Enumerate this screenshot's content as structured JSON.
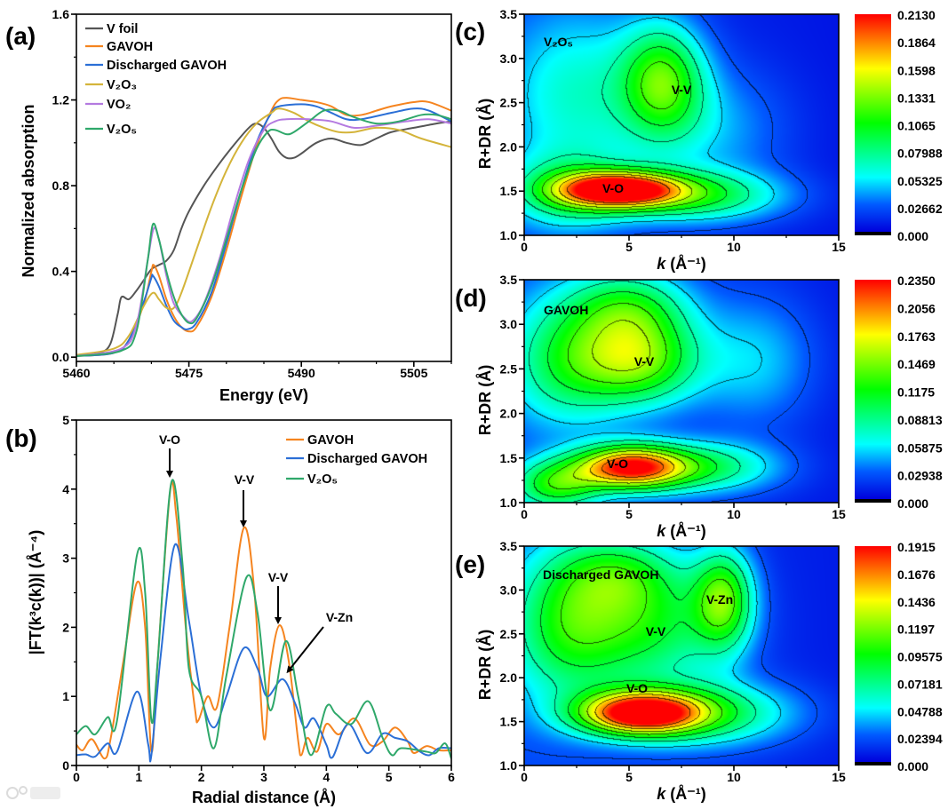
{
  "colors": {
    "v_foil": "#555555",
    "gavoh": "#f5841f",
    "discharged": "#2b6fd6",
    "v2o3": "#d4b43a",
    "vo2": "#b47ae0",
    "v2o5": "#2fa86a"
  },
  "watermark": "大数跨境",
  "chart_data": [
    {
      "panel": "(a)",
      "type": "line",
      "xlabel": "Energy (eV)",
      "ylabel": "Normalized absorption",
      "xlim": [
        5460,
        5510
      ],
      "ylim": [
        -0.02,
        1.6
      ],
      "xticks": [
        5460,
        5475,
        5490,
        5505
      ],
      "xtick_labels": [
        "5460",
        "5475",
        "5490",
        "5505"
      ],
      "yticks": [
        0,
        0.4,
        0.8,
        1.2,
        1.6
      ],
      "ytick_labels": [
        "0.0",
        "0.4",
        "0.8",
        "1.2",
        "1.6"
      ],
      "legend_position": "top-left",
      "series": [
        {
          "name": "V foil",
          "color": "#555555",
          "x": [
            5460,
            5463,
            5464.5,
            5465.5,
            5466,
            5467,
            5468,
            5469,
            5470,
            5471,
            5472,
            5473,
            5474,
            5475,
            5477,
            5479,
            5481,
            5483,
            5484,
            5485,
            5486,
            5487,
            5488,
            5489,
            5490,
            5492,
            5494,
            5496,
            5498,
            5500,
            5502,
            5505,
            5508,
            5510
          ],
          "y": [
            0.01,
            0.02,
            0.06,
            0.2,
            0.28,
            0.27,
            0.31,
            0.36,
            0.41,
            0.43,
            0.45,
            0.5,
            0.6,
            0.68,
            0.8,
            0.9,
            0.99,
            1.07,
            1.09,
            1.07,
            1.02,
            0.96,
            0.93,
            0.93,
            0.95,
            1.0,
            1.02,
            1.0,
            0.99,
            1.02,
            1.05,
            1.07,
            1.09,
            1.1
          ]
        },
        {
          "name": "GAVOH",
          "color": "#f5841f",
          "x": [
            5460,
            5465,
            5467,
            5469,
            5470,
            5470.3,
            5471,
            5472,
            5473,
            5474,
            5475,
            5476,
            5478,
            5480,
            5482,
            5484,
            5486,
            5487,
            5488,
            5490,
            5492,
            5494,
            5496,
            5498,
            5500,
            5502,
            5505,
            5507,
            5510
          ],
          "y": [
            0.005,
            0.02,
            0.08,
            0.25,
            0.4,
            0.43,
            0.38,
            0.27,
            0.19,
            0.14,
            0.12,
            0.14,
            0.28,
            0.5,
            0.75,
            0.98,
            1.15,
            1.2,
            1.21,
            1.2,
            1.19,
            1.17,
            1.13,
            1.13,
            1.15,
            1.17,
            1.19,
            1.19,
            1.15
          ]
        },
        {
          "name": "Discharged GAVOH",
          "color": "#2b6fd6",
          "x": [
            5460,
            5465,
            5467,
            5469,
            5470,
            5470.2,
            5471,
            5472,
            5473,
            5474,
            5474.8,
            5476,
            5478,
            5480,
            5482,
            5484,
            5486,
            5487,
            5490,
            5492,
            5494,
            5496,
            5498,
            5502,
            5505,
            5507,
            5510
          ],
          "y": [
            0.005,
            0.02,
            0.08,
            0.26,
            0.37,
            0.38,
            0.33,
            0.24,
            0.17,
            0.14,
            0.13,
            0.16,
            0.3,
            0.53,
            0.78,
            1.0,
            1.14,
            1.17,
            1.18,
            1.17,
            1.14,
            1.11,
            1.11,
            1.14,
            1.16,
            1.15,
            1.1
          ]
        },
        {
          "name": "V₂O₃",
          "color": "#d4b43a",
          "x": [
            5460,
            5465,
            5467,
            5469,
            5470.2,
            5471,
            5472,
            5473,
            5474,
            5476,
            5478,
            5480,
            5482,
            5484,
            5486,
            5487,
            5489,
            5491,
            5493,
            5495,
            5497,
            5500,
            5503,
            5506,
            5510
          ],
          "y": [
            0.01,
            0.04,
            0.1,
            0.24,
            0.3,
            0.27,
            0.23,
            0.23,
            0.3,
            0.5,
            0.7,
            0.87,
            1.0,
            1.09,
            1.14,
            1.16,
            1.14,
            1.1,
            1.07,
            1.05,
            1.05,
            1.07,
            1.06,
            1.02,
            0.98
          ]
        },
        {
          "name": "VO₂",
          "color": "#b47ae0",
          "x": [
            5460,
            5466,
            5468,
            5469.5,
            5470.3,
            5471,
            5472,
            5473,
            5474.5,
            5475.5,
            5477,
            5479,
            5481,
            5483,
            5485,
            5486.5,
            5488,
            5491,
            5494,
            5497,
            5500,
            5504,
            5507,
            5510
          ],
          "y": [
            0.005,
            0.04,
            0.15,
            0.45,
            0.6,
            0.55,
            0.38,
            0.25,
            0.18,
            0.17,
            0.25,
            0.45,
            0.7,
            0.92,
            1.06,
            1.1,
            1.11,
            1.11,
            1.1,
            1.07,
            1.08,
            1.1,
            1.11,
            1.09
          ]
        },
        {
          "name": "V₂O₅",
          "color": "#2fa86a",
          "x": [
            5460,
            5466,
            5468,
            5469.5,
            5470.2,
            5471,
            5472,
            5473,
            5474,
            5475,
            5476,
            5478,
            5480,
            5482,
            5484,
            5485.5,
            5486.5,
            5488,
            5489,
            5491,
            5493,
            5495,
            5497,
            5500,
            5503,
            5506,
            5508,
            5510
          ],
          "y": [
            0.005,
            0.03,
            0.12,
            0.45,
            0.62,
            0.55,
            0.4,
            0.28,
            0.2,
            0.16,
            0.18,
            0.33,
            0.55,
            0.78,
            0.97,
            1.05,
            1.06,
            1.04,
            1.05,
            1.1,
            1.15,
            1.15,
            1.12,
            1.09,
            1.1,
            1.13,
            1.13,
            1.11
          ]
        }
      ]
    },
    {
      "panel": "(b)",
      "type": "line",
      "xlabel": "Radial distance (Å)",
      "ylabel": "|FT(k³c(k))| (Å⁻⁴)",
      "xlim": [
        0,
        6
      ],
      "ylim": [
        0,
        5
      ],
      "xticks": [
        0,
        1,
        2,
        3,
        4,
        5,
        6
      ],
      "xtick_labels": [
        "0",
        "1",
        "2",
        "3",
        "4",
        "5",
        "6"
      ],
      "yticks": [
        0,
        1,
        2,
        3,
        4,
        5
      ],
      "ytick_labels": [
        "0",
        "1",
        "2",
        "3",
        "4",
        "5"
      ],
      "legend_position": "top-right",
      "annotations": [
        "V-O",
        "V-V",
        "V-V",
        "V-Zn"
      ],
      "series": [
        {
          "name": "GAVOH",
          "color": "#f5841f",
          "x": [
            0,
            0.1,
            0.25,
            0.45,
            0.55,
            0.75,
            0.97,
            1.1,
            1.2,
            1.3,
            1.5,
            1.6,
            1.75,
            1.9,
            1.95,
            2.1,
            2.25,
            2.45,
            2.68,
            2.85,
            3.0,
            3.1,
            3.25,
            3.4,
            3.55,
            3.6,
            3.7,
            3.85,
            4.0,
            4.2,
            4.45,
            4.7,
            4.9,
            5.1,
            5.3,
            5.4,
            5.6,
            5.8,
            6.0
          ],
          "y": [
            0.3,
            0.22,
            0.38,
            0.1,
            0.4,
            1.5,
            2.65,
            2.0,
            0.2,
            1.5,
            3.97,
            3.6,
            2.0,
            0.8,
            0.65,
            1.0,
            0.85,
            2.0,
            3.44,
            2.5,
            0.4,
            1.4,
            2.03,
            1.5,
            0.35,
            0.15,
            0.4,
            0.2,
            0.6,
            0.45,
            0.68,
            0.3,
            0.35,
            0.55,
            0.35,
            0.18,
            0.28,
            0.22,
            0.22
          ]
        },
        {
          "name": "Discharged GAVOH",
          "color": "#2b6fd6",
          "x": [
            0,
            0.15,
            0.3,
            0.5,
            0.65,
            0.97,
            1.15,
            1.2,
            1.35,
            1.58,
            1.8,
            2.0,
            2.2,
            2.4,
            2.68,
            2.9,
            3.05,
            3.3,
            3.5,
            3.65,
            3.8,
            4.0,
            4.1,
            4.35,
            4.65,
            4.9,
            5.1,
            5.3,
            5.5,
            5.65,
            5.8,
            6.0
          ],
          "y": [
            0.15,
            0.16,
            0.13,
            0.32,
            0.2,
            1.07,
            0.3,
            0.15,
            1.6,
            3.2,
            2.1,
            1.0,
            0.55,
            1.0,
            1.7,
            1.4,
            1.0,
            1.25,
            0.9,
            0.55,
            0.68,
            0.3,
            0.12,
            0.6,
            0.18,
            0.46,
            0.4,
            0.35,
            0.2,
            0.15,
            0.25,
            0.25
          ]
        },
        {
          "name": "V₂O₅",
          "color": "#2fa86a",
          "x": [
            0,
            0.15,
            0.3,
            0.5,
            0.65,
            0.97,
            1.1,
            1.2,
            1.3,
            1.52,
            1.7,
            1.8,
            2.0,
            2.2,
            2.4,
            2.72,
            2.9,
            3.1,
            3.35,
            3.55,
            3.75,
            4.0,
            4.15,
            4.4,
            4.67,
            4.9,
            5.05,
            5.2,
            5.6,
            5.75,
            5.9,
            6.0
          ],
          "y": [
            0.45,
            0.57,
            0.45,
            0.7,
            0.65,
            3.05,
            2.5,
            0.65,
            1.5,
            4.1,
            2.9,
            1.4,
            1.0,
            0.25,
            1.3,
            2.72,
            2.2,
            0.8,
            1.8,
            1.0,
            0.15,
            0.85,
            0.75,
            0.6,
            0.93,
            0.4,
            0.15,
            0.25,
            0.2,
            0.18,
            0.32,
            0.1
          ]
        }
      ]
    },
    {
      "panel": "(c)",
      "type": "heatmap",
      "sample": "V₂O₅",
      "xlabel_var": "k",
      "xlabel_unit": " (Å⁻¹)",
      "ylabel": "R+DR (Å)",
      "xlim": [
        0,
        15
      ],
      "ylim": [
        1.0,
        3.5
      ],
      "xticks": [
        0,
        5,
        10,
        15
      ],
      "xtick_labels": [
        "0",
        "5",
        "10",
        "15"
      ],
      "yticks": [
        1.0,
        1.5,
        2.0,
        2.5,
        3.0,
        3.5
      ],
      "ytick_labels": [
        "1.0",
        "1.5",
        "2.0",
        "2.5",
        "3.0",
        "3.5"
      ],
      "colorbar": {
        "min": 0,
        "max": 0.213,
        "labels": [
          "0.2130",
          "0.1864",
          "0.1598",
          "0.1331",
          "0.1065",
          "0.07988",
          "0.05325",
          "0.02662",
          "0.000"
        ]
      },
      "annotations": [
        "V₂O₅",
        "V-V",
        "V-O"
      ],
      "peaks": [
        {
          "k": 4.5,
          "R": 1.52,
          "amp": 0.19,
          "sk": 2.0,
          "sR": 0.14
        },
        {
          "k": 8.0,
          "R": 1.45,
          "amp": 0.08,
          "sk": 3.0,
          "sR": 0.2
        },
        {
          "k": 2.0,
          "R": 1.5,
          "amp": 0.06,
          "sk": 2.0,
          "sR": 0.3
        },
        {
          "k": 6.6,
          "R": 2.75,
          "amp": 0.1,
          "sk": 1.4,
          "sR": 0.45
        },
        {
          "k": 2.5,
          "R": 2.6,
          "amp": 0.05,
          "sk": 2.5,
          "sR": 0.7
        },
        {
          "k": 9.0,
          "R": 2.2,
          "amp": 0.03,
          "sk": 2.5,
          "sR": 0.5
        }
      ],
      "baseline": 0.015
    },
    {
      "panel": "(d)",
      "type": "heatmap",
      "sample": "GAVOH",
      "xlabel_var": "k",
      "xlabel_unit": " (Å⁻¹)",
      "ylabel": "R+DR (Å)",
      "xlim": [
        0,
        15
      ],
      "ylim": [
        1.0,
        3.5
      ],
      "xticks": [
        0,
        5,
        10,
        15
      ],
      "xtick_labels": [
        "0",
        "5",
        "10",
        "15"
      ],
      "yticks": [
        1.0,
        1.5,
        2.0,
        2.5,
        3.0,
        3.5
      ],
      "ytick_labels": [
        "1.0",
        "1.5",
        "2.0",
        "2.5",
        "3.0",
        "3.5"
      ],
      "colorbar": {
        "min": 0,
        "max": 0.235,
        "labels": [
          "0.2350",
          "0.2056",
          "0.1763",
          "0.1469",
          "0.1175",
          "0.08813",
          "0.05875",
          "0.02938",
          "0.000"
        ]
      },
      "annotations": [
        "GAVOH",
        "V-V",
        "V-O"
      ],
      "peaks": [
        {
          "k": 5.0,
          "R": 1.4,
          "amp": 0.2,
          "sk": 1.8,
          "sR": 0.17
        },
        {
          "k": 1.5,
          "R": 1.2,
          "amp": 0.1,
          "sk": 1.5,
          "sR": 0.2
        },
        {
          "k": 8.5,
          "R": 1.4,
          "amp": 0.08,
          "sk": 2.5,
          "sR": 0.2
        },
        {
          "k": 5.5,
          "R": 2.6,
          "amp": 0.12,
          "sk": 2.0,
          "sR": 0.35
        },
        {
          "k": 2.0,
          "R": 2.6,
          "amp": 0.08,
          "sk": 2.0,
          "sR": 0.5
        },
        {
          "k": 5.0,
          "R": 3.2,
          "amp": 0.08,
          "sk": 2.0,
          "sR": 0.3
        },
        {
          "k": 11.0,
          "R": 2.6,
          "amp": 0.04,
          "sk": 2.0,
          "sR": 0.5
        }
      ],
      "baseline": 0.02
    },
    {
      "panel": "(e)",
      "type": "heatmap",
      "sample": "Discharged GAVOH",
      "xlabel_var": "k",
      "xlabel_unit": " (Å⁻¹)",
      "ylabel": "R+DR (Å)",
      "xlim": [
        0,
        15
      ],
      "ylim": [
        1.0,
        3.5
      ],
      "xticks": [
        0,
        5,
        10,
        15
      ],
      "xtick_labels": [
        "0",
        "5",
        "10",
        "15"
      ],
      "yticks": [
        1.0,
        1.5,
        2.0,
        2.5,
        3.0,
        3.5
      ],
      "ytick_labels": [
        "1.0",
        "1.5",
        "2.0",
        "2.5",
        "3.0",
        "3.5"
      ],
      "colorbar": {
        "min": 0,
        "max": 0.1915,
        "labels": [
          "0.1915",
          "0.1676",
          "0.1436",
          "0.1197",
          "0.09575",
          "0.07181",
          "0.04788",
          "0.02394",
          "0.000"
        ]
      },
      "annotations": [
        "Discharged GAVOH",
        "V-Zn",
        "V-V",
        "V-O"
      ],
      "peaks": [
        {
          "k": 5.5,
          "R": 1.6,
          "amp": 0.17,
          "sk": 2.0,
          "sR": 0.17
        },
        {
          "k": 8.5,
          "R": 1.6,
          "amp": 0.07,
          "sk": 3.0,
          "sR": 0.25
        },
        {
          "k": 6.0,
          "R": 2.6,
          "amp": 0.07,
          "sk": 2.5,
          "sR": 0.5
        },
        {
          "k": 9.5,
          "R": 2.9,
          "amp": 0.09,
          "sk": 1.0,
          "sR": 0.4
        },
        {
          "k": 2.0,
          "R": 2.6,
          "amp": 0.07,
          "sk": 2.0,
          "sR": 0.6
        },
        {
          "k": 4.5,
          "R": 3.2,
          "amp": 0.05,
          "sk": 2.0,
          "sR": 0.3
        }
      ],
      "baseline": 0.018
    }
  ]
}
